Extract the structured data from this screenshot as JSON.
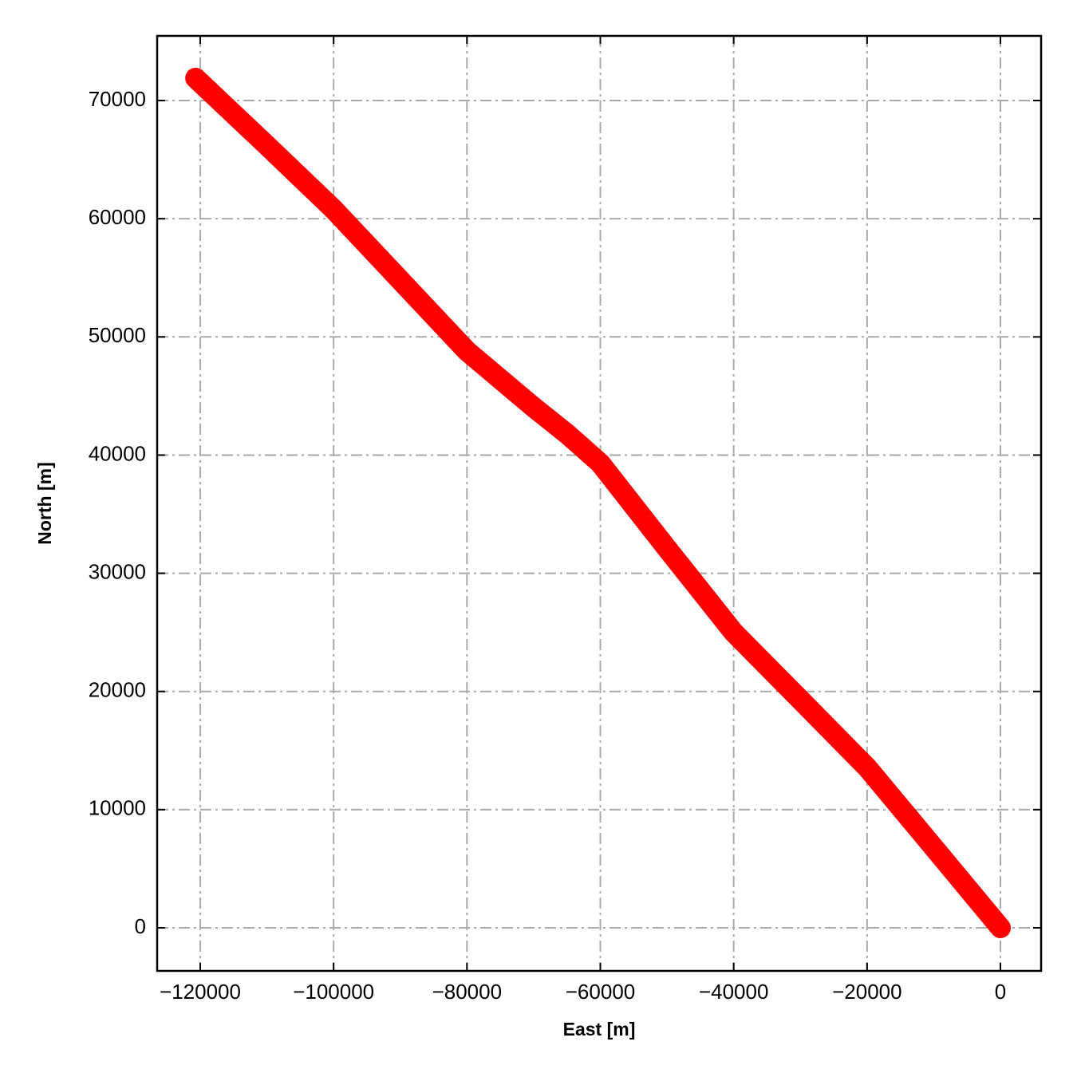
{
  "chart_data": {
    "type": "line",
    "xlabel": "East [m]",
    "ylabel": "North [m]",
    "x": [
      -120700,
      -110000,
      -100000,
      -90000,
      -80000,
      -70000,
      -65000,
      -60000,
      -50000,
      -40000,
      -30000,
      -20000,
      -10000,
      0
    ],
    "series": [
      {
        "color": "#ff0000",
        "values": [
          71900,
          66200,
          60800,
          54800,
          48800,
          44050,
          41800,
          39300,
          32100,
          25000,
          19300,
          13570,
          6800,
          0
        ]
      }
    ],
    "xlim": [
      -126460,
      6100
    ],
    "ylim": [
      -3645,
      75470
    ],
    "xticks": [
      {
        "value": -120000,
        "label": "−120000"
      },
      {
        "value": -100000,
        "label": "−100000"
      },
      {
        "value": -80000,
        "label": "−80000"
      },
      {
        "value": -60000,
        "label": "−60000"
      },
      {
        "value": -40000,
        "label": "−40000"
      },
      {
        "value": -20000,
        "label": "−20000"
      },
      0
    ],
    "yticks": [
      0,
      10000,
      20000,
      30000,
      40000,
      50000,
      60000,
      70000
    ],
    "grid": true
  }
}
